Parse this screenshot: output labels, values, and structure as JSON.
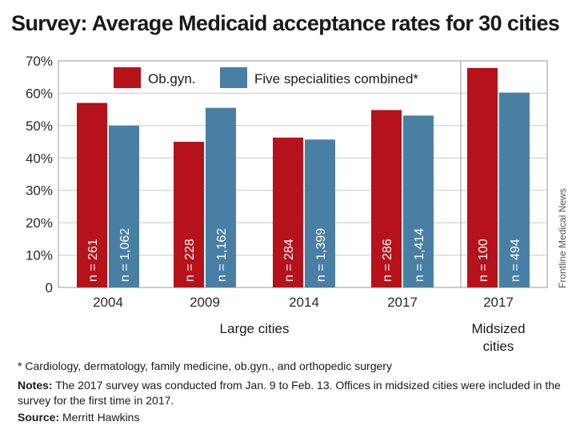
{
  "title": "Survey: Average Medicaid acceptance rates for 30 cities",
  "credit": "Frontline Medical News",
  "footnote": "* Cardiology, dermatology, family medicine, ob.gyn., and orthopedic surgery",
  "notes": {
    "label": "Notes:",
    "text": "The 2017 survey was conducted from Jan. 9 to Feb. 13. Offices in midsized cities were included in the survey for the first time in 2017."
  },
  "source": {
    "label": "Source:",
    "text": "Merritt Hawkins"
  },
  "colors": {
    "obgyn": "#b5121b",
    "five": "#4a7fa5",
    "grid": "#c8c8c8"
  },
  "chart_data": {
    "type": "bar",
    "title": "Survey: Average Medicaid acceptance rates for 30 cities",
    "ylim": [
      0,
      70
    ],
    "yticks": [
      "0",
      "10%",
      "20%",
      "30%",
      "40%",
      "50%",
      "60%",
      "70%"
    ],
    "grid": true,
    "legend_position": "top",
    "categories": [
      "2004",
      "2009",
      "2014",
      "2017",
      "2017"
    ],
    "groups": [
      {
        "label": "Large cities",
        "categories": [
          "2004",
          "2009",
          "2014",
          "2017"
        ]
      },
      {
        "label": "Midsized cities",
        "categories": [
          "2017"
        ]
      }
    ],
    "series": [
      {
        "name": "Ob.gyn.",
        "color": "#b5121b",
        "values": [
          57,
          45,
          46.3,
          54.8,
          67.8
        ],
        "labels": [
          "n = 261",
          "n = 228",
          "n = 284",
          "n = 286",
          "n = 100"
        ]
      },
      {
        "name": "Five specialities combined*",
        "color": "#4a7fa5",
        "values": [
          50,
          55.5,
          45.7,
          53.1,
          60.2
        ],
        "labels": [
          "n = 1,062",
          "n = 1,162",
          "n = 1,399",
          "n = 1,414",
          "n = 494"
        ]
      }
    ]
  }
}
